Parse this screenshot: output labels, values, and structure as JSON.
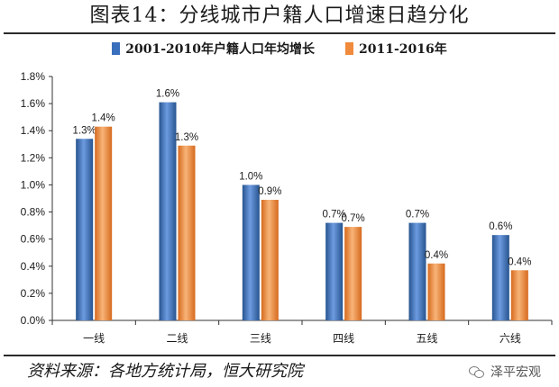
{
  "chart_data": {
    "type": "bar",
    "title": "图表14：分线城市户籍人口增速日趋分化",
    "categories": [
      "一线",
      "二线",
      "三线",
      "四线",
      "五线",
      "六线"
    ],
    "series": [
      {
        "name": "2001-2010年户籍人口年均增长",
        "values": [
          1.34,
          1.61,
          1.0,
          0.72,
          0.72,
          0.63
        ],
        "labels": [
          "1.3%",
          "1.6%",
          "1.0%",
          "0.7%",
          "0.7%",
          "0.6%"
        ],
        "color": "#3a6fbd"
      },
      {
        "name": "2011-2016年",
        "values": [
          1.43,
          1.29,
          0.89,
          0.69,
          0.42,
          0.37
        ],
        "labels": [
          "1.4%",
          "1.3%",
          "0.9%",
          "0.7%",
          "0.4%",
          "0.4%"
        ],
        "color": "#f08a3c"
      }
    ],
    "ylim": [
      0,
      1.8
    ],
    "yticks": [
      "0.0%",
      "0.2%",
      "0.4%",
      "0.6%",
      "0.8%",
      "1.0%",
      "1.2%",
      "1.4%",
      "1.6%",
      "1.8%"
    ],
    "xlabel": "",
    "ylabel": "",
    "grid": false,
    "legend_position": "top"
  },
  "source_text": "资料来源：各地方统计局，恒大研究院",
  "watermark": {
    "text": "泽平宏观",
    "icon": "wechat-icon"
  }
}
